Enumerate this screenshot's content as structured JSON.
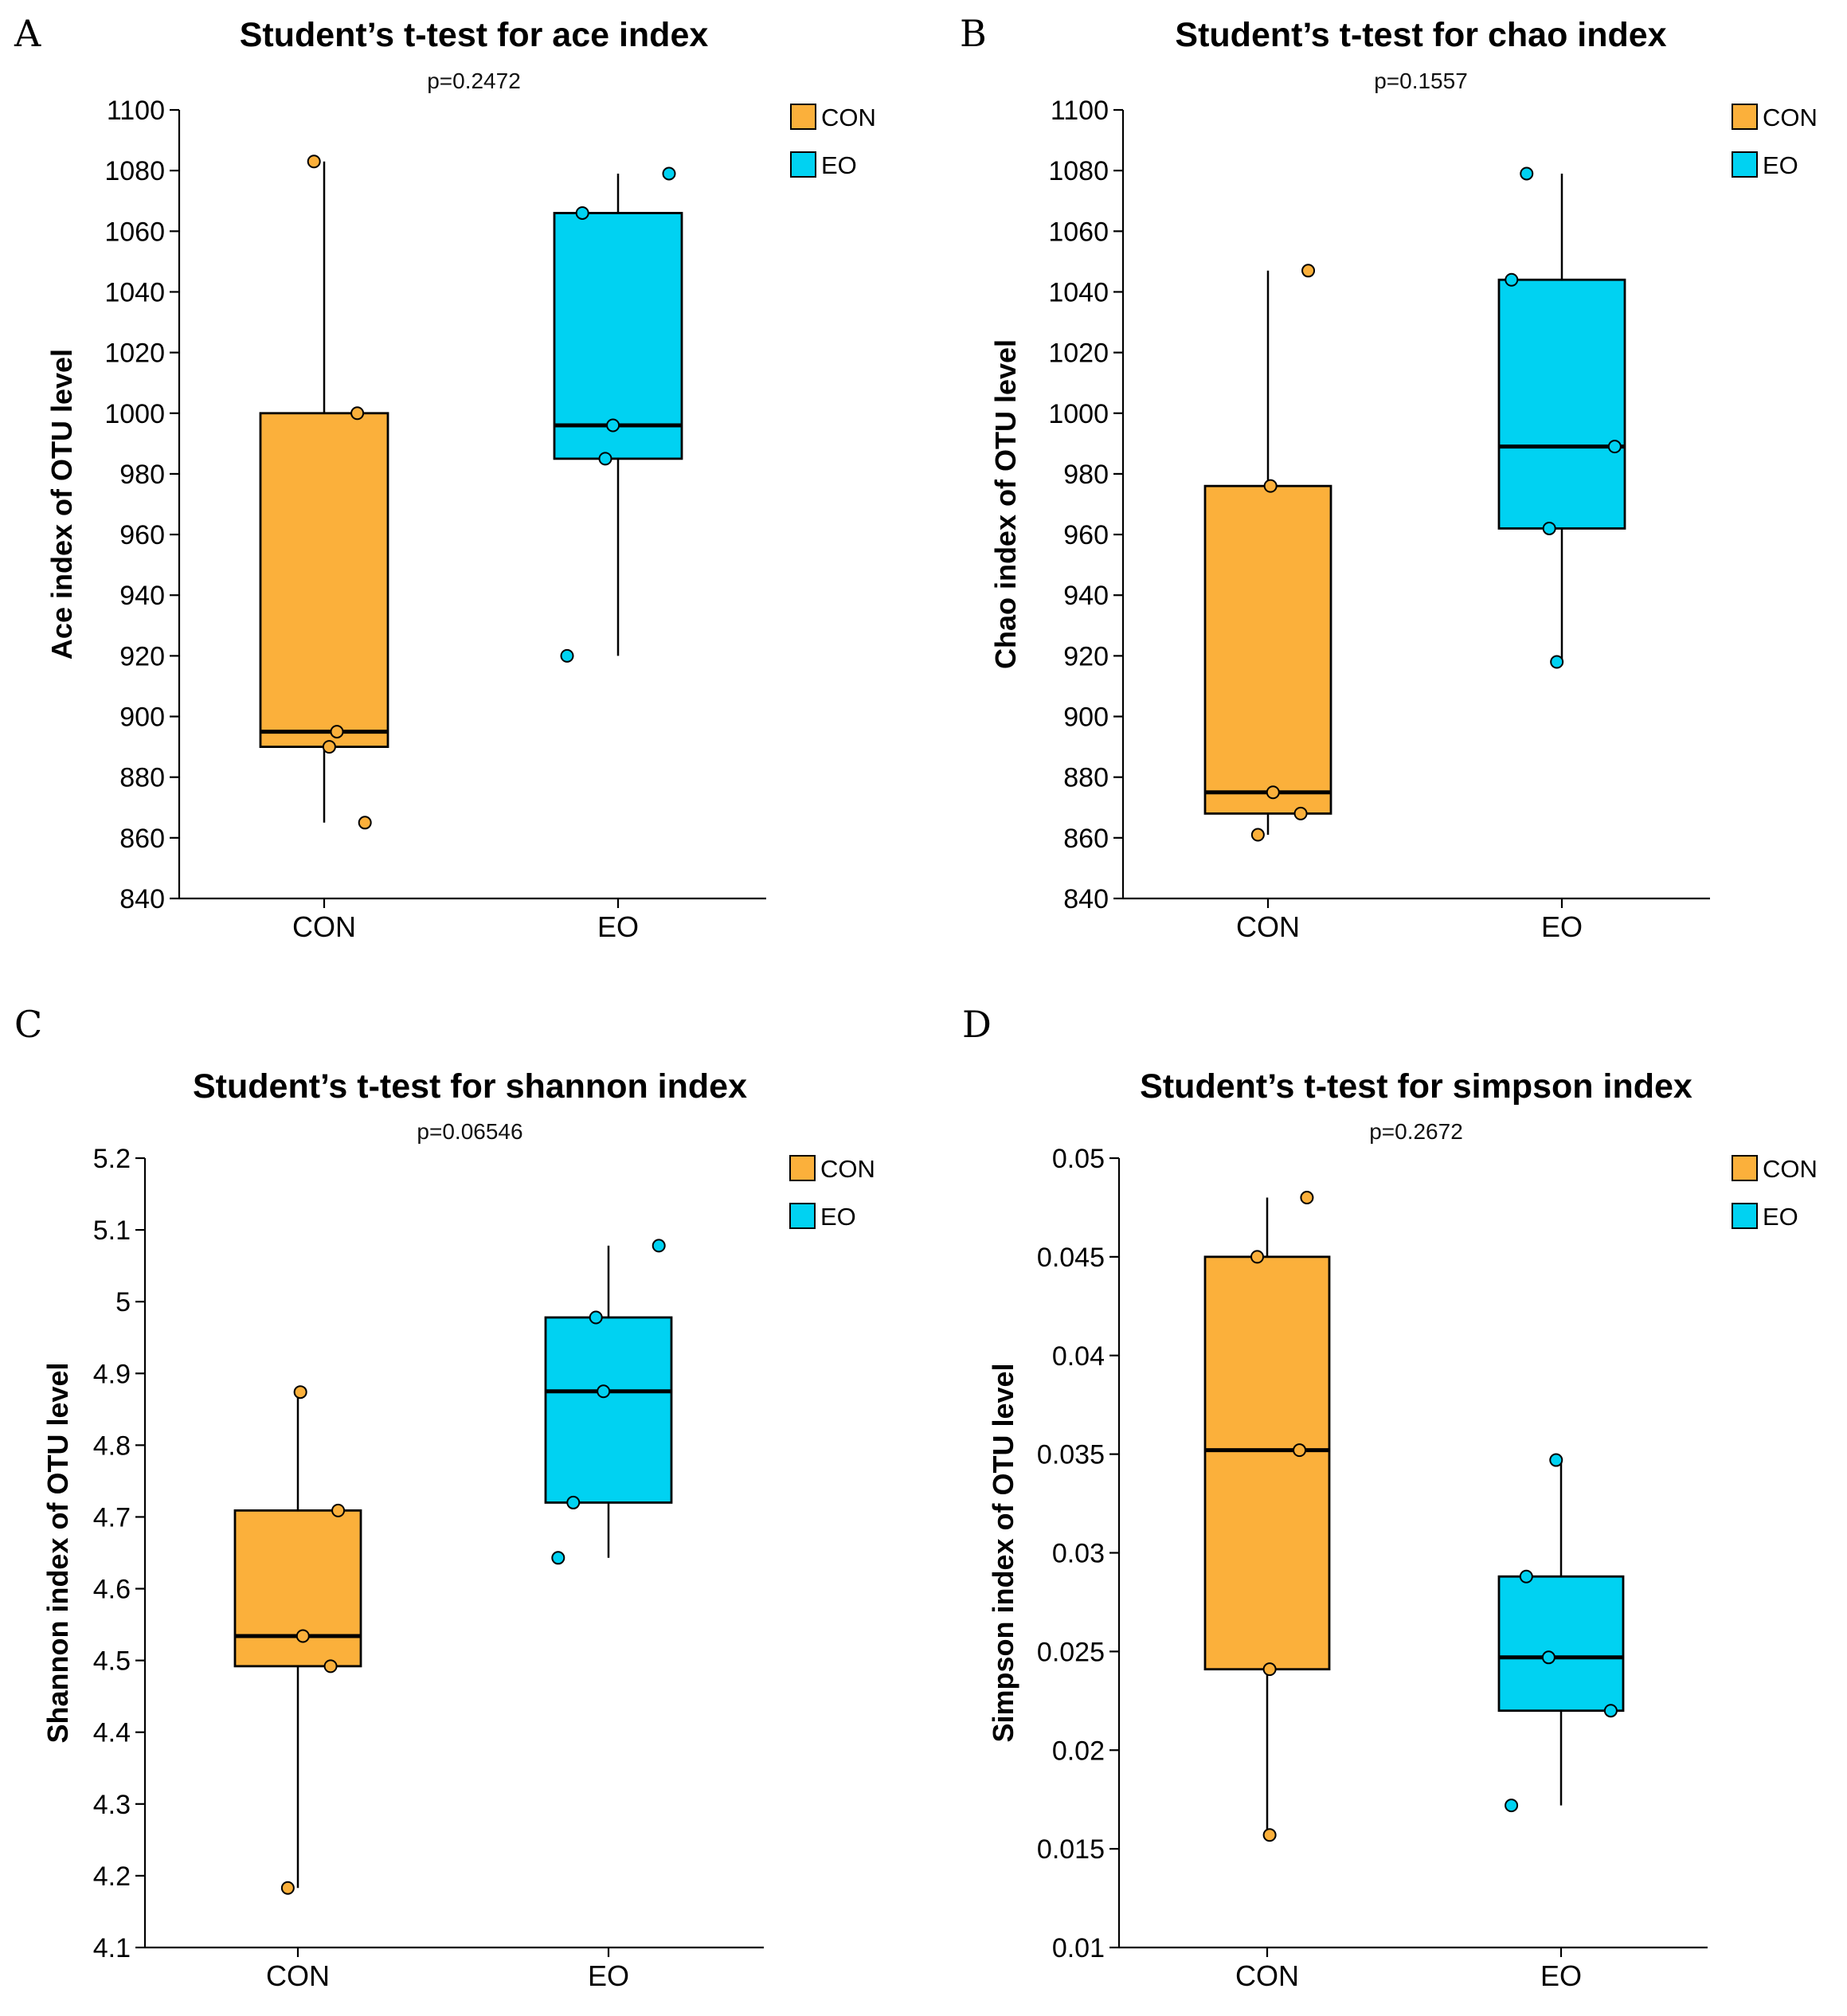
{
  "colors": {
    "CON": "#FBB03B",
    "EO": "#00D2F2",
    "axis": "#000000"
  },
  "chart_data": [
    {
      "panel": "A",
      "type": "box",
      "title": "Student’s t-test for ace index",
      "subtitle": "p=0.2472",
      "xlabel": "",
      "ylabel": "Ace index of OTU level",
      "ylim": [
        840,
        1100
      ],
      "yticks": [
        "840",
        "860",
        "880",
        "900",
        "920",
        "940",
        "960",
        "980",
        "1000",
        "1020",
        "1040",
        "1060",
        "1080",
        "1100"
      ],
      "categories": [
        "CON",
        "EO"
      ],
      "legend": [
        "CON",
        "EO"
      ],
      "series": [
        {
          "name": "CON",
          "whisker_low": 865,
          "q1": 890,
          "median": 895,
          "q3": 1000,
          "whisker_high": 1083,
          "points": [
            [
              0.05,
              895
            ],
            [
              0.02,
              890
            ],
            [
              0.16,
              865
            ],
            [
              0.13,
              1000
            ],
            [
              -0.04,
              1083
            ]
          ]
        },
        {
          "name": "EO",
          "whisker_low": 920,
          "q1": 985,
          "median": 996,
          "q3": 1066,
          "whisker_high": 1079,
          "points": [
            [
              -0.2,
              920
            ],
            [
              -0.05,
              985
            ],
            [
              -0.14,
              1066
            ],
            [
              0.2,
              1079
            ],
            [
              -0.02,
              996
            ]
          ]
        }
      ]
    },
    {
      "panel": "B",
      "type": "box",
      "title": "Student’s t-test for chao index",
      "subtitle": "p=0.1557",
      "xlabel": "",
      "ylabel": "Chao index of OTU level",
      "ylim": [
        840,
        1100
      ],
      "yticks": [
        "840",
        "860",
        "880",
        "900",
        "920",
        "940",
        "960",
        "980",
        "1000",
        "1020",
        "1040",
        "1060",
        "1080",
        "1100"
      ],
      "categories": [
        "CON",
        "EO"
      ],
      "legend": [
        "CON",
        "EO"
      ],
      "series": [
        {
          "name": "CON",
          "whisker_low": 861,
          "q1": 868,
          "median": 875,
          "q3": 976,
          "whisker_high": 1047,
          "points": [
            [
              -0.04,
              861
            ],
            [
              0.13,
              868
            ],
            [
              0.02,
              875
            ],
            [
              0.01,
              976
            ],
            [
              0.16,
              1047
            ]
          ]
        },
        {
          "name": "EO",
          "whisker_low": 918,
          "q1": 962,
          "median": 989,
          "q3": 1044,
          "whisker_high": 1079,
          "points": [
            [
              -0.02,
              918
            ],
            [
              -0.05,
              962
            ],
            [
              0.21,
              989
            ],
            [
              -0.2,
              1044
            ],
            [
              -0.14,
              1079
            ]
          ]
        }
      ]
    },
    {
      "panel": "C",
      "type": "box",
      "title": "Student’s t-test for shannon index",
      "subtitle": "p=0.06546",
      "xlabel": "",
      "ylabel": "Shannon index of OTU level",
      "ylim": [
        4.1,
        5.2
      ],
      "yticks": [
        "4.1",
        "4.2",
        "4.3",
        "4.4",
        "4.5",
        "4.6",
        "4.7",
        "4.8",
        "4.9",
        "5",
        "5.1",
        "5.2"
      ],
      "categories": [
        "CON",
        "EO"
      ],
      "legend": [
        "CON",
        "EO"
      ],
      "series": [
        {
          "name": "CON",
          "whisker_low": 4.183,
          "q1": 4.492,
          "median": 4.534,
          "q3": 4.709,
          "whisker_high": 4.874,
          "points": [
            [
              -0.04,
              4.183
            ],
            [
              0.13,
              4.492
            ],
            [
              0.02,
              4.534
            ],
            [
              0.16,
              4.709
            ],
            [
              0.01,
              4.874
            ]
          ]
        },
        {
          "name": "EO",
          "whisker_low": 4.643,
          "q1": 4.72,
          "median": 4.875,
          "q3": 4.978,
          "whisker_high": 5.078,
          "points": [
            [
              -0.2,
              4.643
            ],
            [
              -0.14,
              4.72
            ],
            [
              -0.02,
              4.875
            ],
            [
              -0.05,
              4.978
            ],
            [
              0.2,
              5.078
            ]
          ]
        }
      ]
    },
    {
      "panel": "D",
      "type": "box",
      "title": "Student’s t-test for simpson index",
      "subtitle": "p=0.2672",
      "xlabel": "",
      "ylabel": "Simpson index of OTU level",
      "ylim": [
        0.01,
        0.05
      ],
      "yticks": [
        "0.01",
        "0.015",
        "0.02",
        "0.025",
        "0.03",
        "0.035",
        "0.04",
        "0.045",
        "0.05"
      ],
      "categories": [
        "CON",
        "EO"
      ],
      "legend": [
        "CON",
        "EO"
      ],
      "series": [
        {
          "name": "CON",
          "whisker_low": 0.0157,
          "q1": 0.0241,
          "median": 0.0352,
          "q3": 0.045,
          "whisker_high": 0.048,
          "points": [
            [
              0.01,
              0.0157
            ],
            [
              0.01,
              0.0241
            ],
            [
              0.13,
              0.0352
            ],
            [
              -0.04,
              0.045
            ],
            [
              0.16,
              0.048
            ]
          ]
        },
        {
          "name": "EO",
          "whisker_low": 0.0172,
          "q1": 0.022,
          "median": 0.0247,
          "q3": 0.0288,
          "whisker_high": 0.0347,
          "points": [
            [
              -0.2,
              0.0172
            ],
            [
              0.2,
              0.022
            ],
            [
              -0.05,
              0.0247
            ],
            [
              -0.14,
              0.0288
            ],
            [
              -0.02,
              0.0347
            ]
          ]
        }
      ]
    }
  ]
}
